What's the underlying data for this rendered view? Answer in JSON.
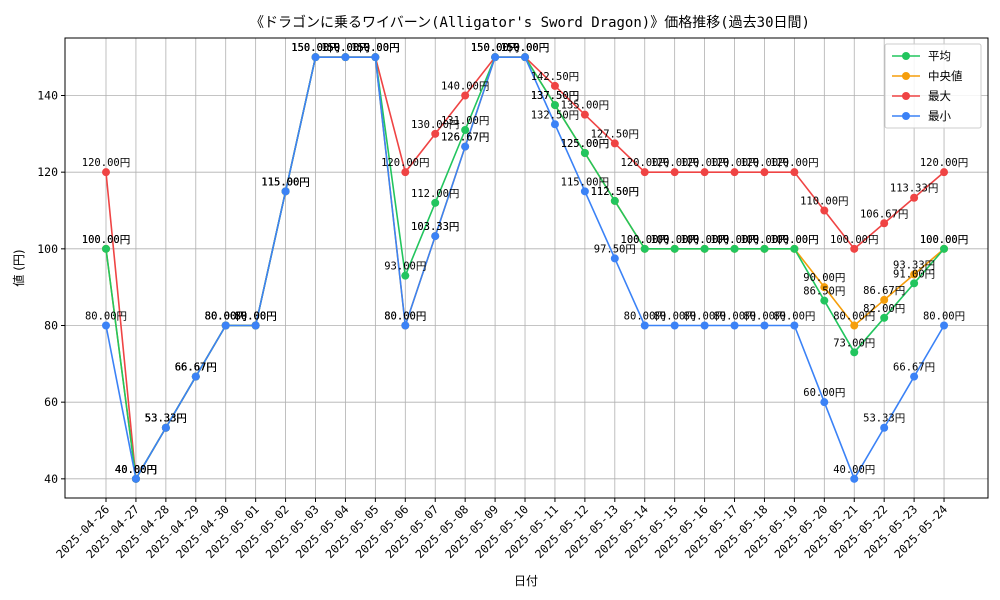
{
  "chart_data": {
    "type": "line",
    "title": "《ドラゴンに乗るワイバーン(Alligator's Sword Dragon)》価格推移(過去30日間)",
    "xlabel": "日付",
    "ylabel": "値 (円)",
    "ylim": [
      35,
      155
    ],
    "yticks": [
      40,
      60,
      80,
      100,
      120,
      140
    ],
    "grid": true,
    "legend_position": "top-right",
    "value_suffix": "円",
    "categories": [
      "2025-04-26",
      "2025-04-27",
      "2025-04-28",
      "2025-04-29",
      "2025-04-30",
      "2025-05-01",
      "2025-05-02",
      "2025-05-03",
      "2025-05-04",
      "2025-05-05",
      "2025-05-06",
      "2025-05-07",
      "2025-05-08",
      "2025-05-09",
      "2025-05-10",
      "2025-05-11",
      "2025-05-12",
      "2025-05-13",
      "2025-05-14",
      "2025-05-15",
      "2025-05-16",
      "2025-05-17",
      "2025-05-18",
      "2025-05-19",
      "2025-05-20",
      "2025-05-21",
      "2025-05-22",
      "2025-05-23",
      "2025-05-24"
    ],
    "series": [
      {
        "name": "最大",
        "color": "#ef4444",
        "values": [
          120,
          40,
          53.33,
          66.67,
          80,
          80,
          115,
          150,
          150,
          150,
          120,
          130,
          140,
          150,
          150,
          142.5,
          135,
          127.5,
          120,
          120,
          120,
          120,
          120,
          120,
          110,
          100,
          106.67,
          113.33,
          120
        ]
      },
      {
        "name": "中央値",
        "color": "#f59e0b",
        "values": [
          100,
          40,
          53.33,
          66.67,
          80,
          80,
          115,
          150,
          150,
          150,
          80,
          103.33,
          126.67,
          150,
          150,
          137.5,
          125,
          112.5,
          100,
          100,
          100,
          100,
          100,
          100,
          90,
          80,
          86.67,
          93.33,
          100
        ]
      },
      {
        "name": "平均",
        "color": "#22c55e",
        "values": [
          100,
          40,
          53.33,
          66.67,
          80,
          80,
          115,
          150,
          150,
          150,
          93,
          112,
          131,
          150,
          150,
          137.5,
          125,
          112.5,
          100,
          100,
          100,
          100,
          100,
          100,
          86.5,
          73,
          82,
          91,
          100
        ]
      },
      {
        "name": "最小",
        "color": "#3b82f6",
        "values": [
          80,
          40,
          53.33,
          66.67,
          80,
          80,
          115,
          150,
          150,
          150,
          80,
          103.33,
          126.67,
          150,
          150,
          132.5,
          115,
          97.5,
          80,
          80,
          80,
          80,
          80,
          80,
          60,
          40,
          53.33,
          66.67,
          80
        ]
      }
    ],
    "legend": [
      {
        "name": "平均",
        "color": "#22c55e"
      },
      {
        "name": "中央値",
        "color": "#f59e0b"
      },
      {
        "name": "最大",
        "color": "#ef4444"
      },
      {
        "name": "最小",
        "color": "#3b82f6"
      }
    ]
  }
}
